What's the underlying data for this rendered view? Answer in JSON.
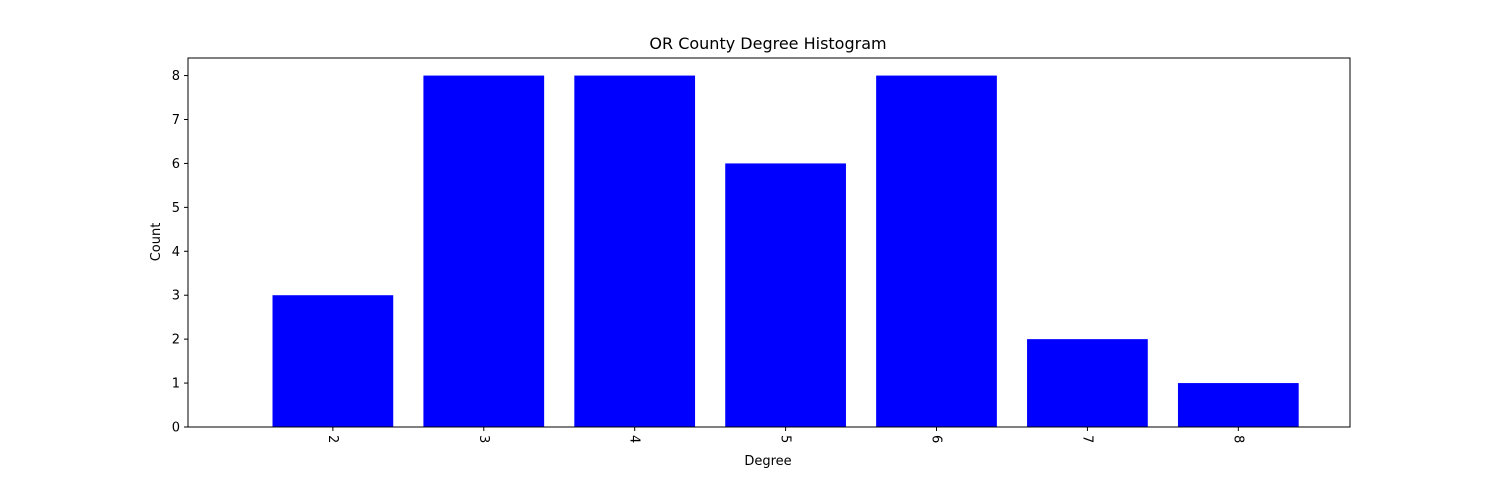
{
  "chart_data": {
    "type": "bar",
    "title": "OR County Degree Histogram",
    "xlabel": "Degree",
    "ylabel": "Count",
    "categories": [
      "2",
      "3",
      "4",
      "5",
      "6",
      "7",
      "8"
    ],
    "values": [
      3,
      8,
      8,
      6,
      8,
      2,
      1
    ],
    "ylim": [
      0,
      8.4
    ],
    "yticks": [
      "0",
      "1",
      "2",
      "3",
      "4",
      "5",
      "6",
      "7",
      "8"
    ],
    "bar_color": "#0000ff",
    "grid": false,
    "xtick_rotation_deg": -90
  }
}
